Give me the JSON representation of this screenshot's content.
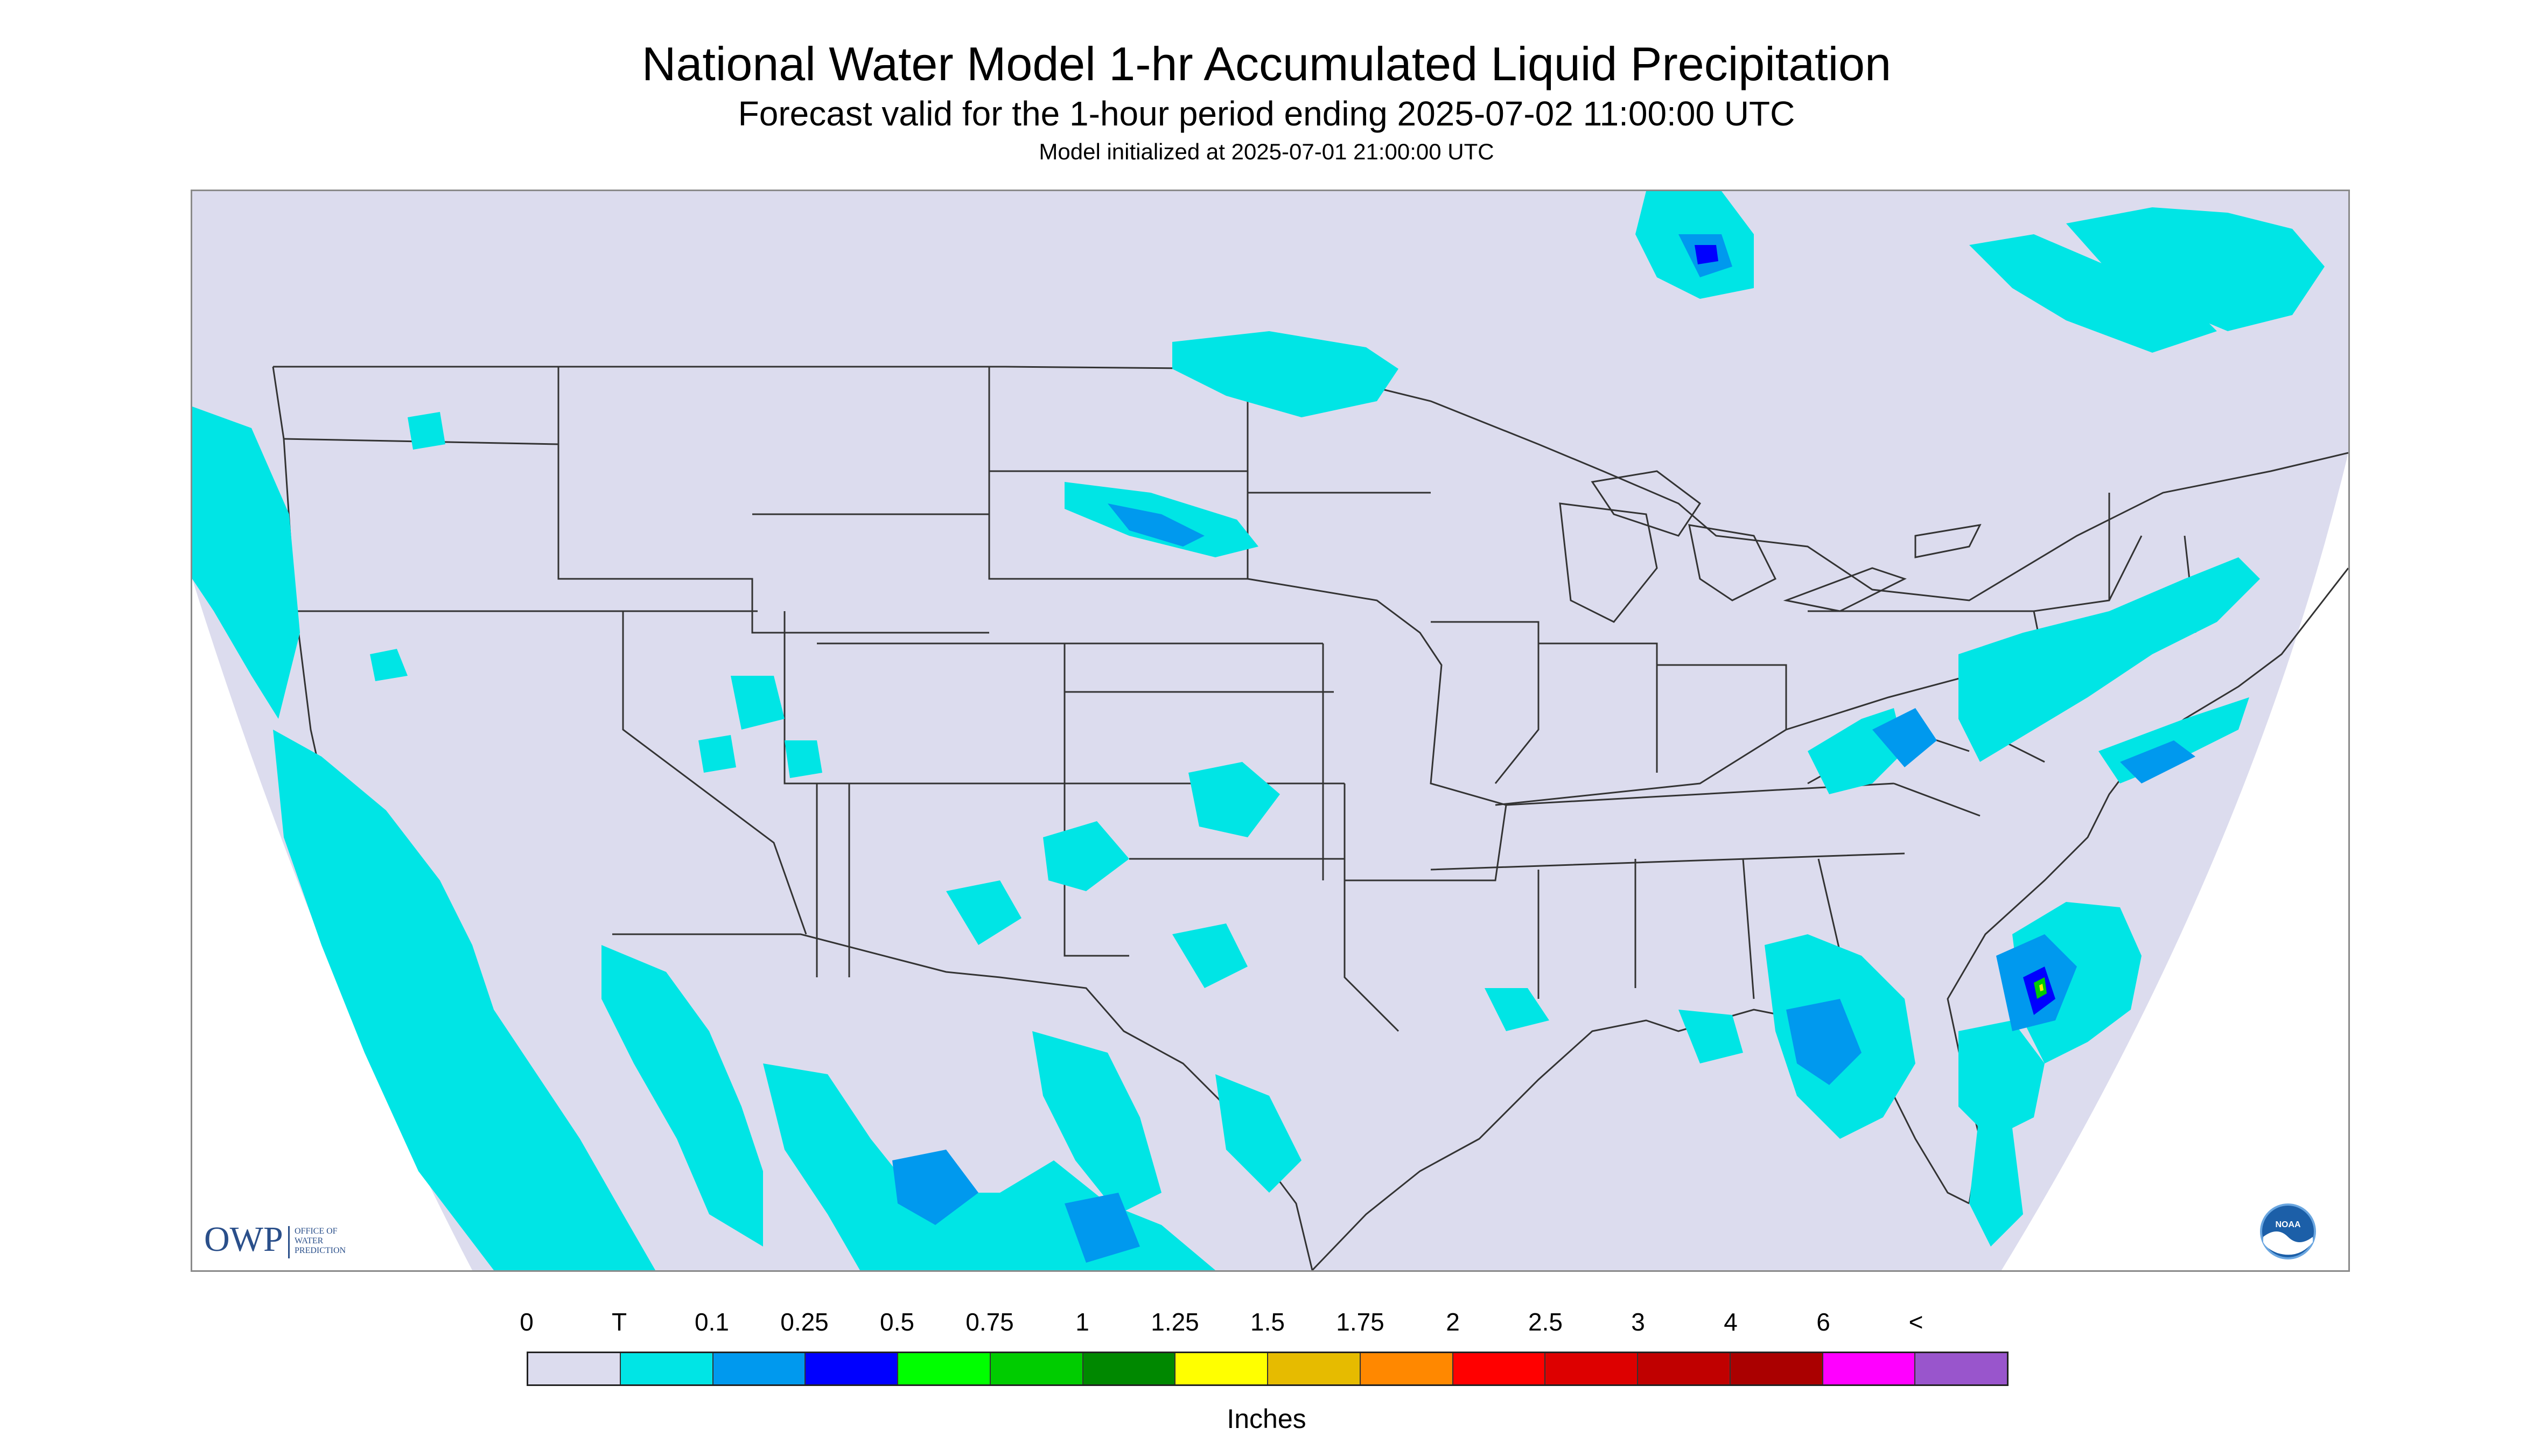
{
  "header": {
    "title": "National Water Model 1-hr Accumulated Liquid Precipitation",
    "subtitle": "Forecast valid for the 1-hour period ending 2025-07-02 11:00:00 UTC",
    "init": "Model initialized at 2025-07-01 21:00:00 UTC"
  },
  "map": {
    "background_color": "#ffffff",
    "domain_color": "#dcdcee",
    "boundary_color": "#333333",
    "precip_light_color": "#00e5e5",
    "precip_mid_color": "#0099ee",
    "precip_heavy_color": "#0000ff",
    "precip_green_color": "#00cc00",
    "precip_yellow_color": "#ffee00"
  },
  "logos": {
    "owp_text": "OWP",
    "owp_line1": "OFFICE OF",
    "owp_line2": "WATER",
    "owp_line3": "PREDICTION",
    "noaa_text": "NOAA"
  },
  "legend": {
    "labels": [
      "0",
      "T",
      "0.1",
      "0.25",
      "0.5",
      "0.75",
      "1",
      "1.25",
      "1.5",
      "1.75",
      "2",
      "2.5",
      "3",
      "4",
      "6",
      "<"
    ],
    "colors": [
      "#dcdcee",
      "#00e5e5",
      "#0099ee",
      "#0000ff",
      "#00ff00",
      "#00cc00",
      "#008800",
      "#ffff00",
      "#e6bb00",
      "#ff8800",
      "#ff0000",
      "#dd0000",
      "#c00000",
      "#aa0000",
      "#ff00ff",
      "#9955cc"
    ],
    "units": "Inches"
  }
}
